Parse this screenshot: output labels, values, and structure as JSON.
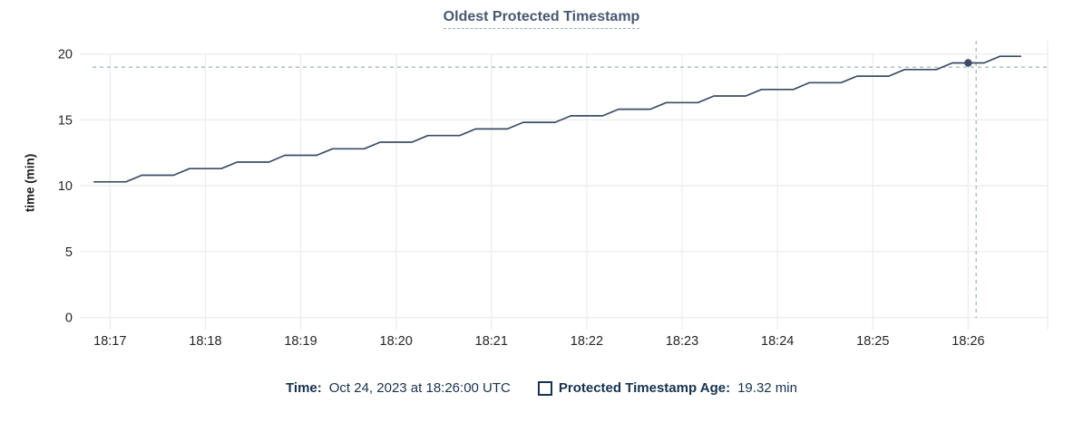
{
  "title": {
    "text": "Oldest Protected Timestamp"
  },
  "legend": {
    "time_label": "Time:",
    "time_value": "Oct 24, 2023 at 18:26:00 UTC",
    "series_label": "Protected Timestamp Age:",
    "series_value": "19.32 min",
    "checkbox_icon": "checkbox-unchecked-icon"
  },
  "colors": {
    "accent": "#475872",
    "underline": "#9aaabb",
    "navy": "#16324f",
    "series": "#3b4c64",
    "grid": "#ededed",
    "cursor": "#a7b6c4",
    "tick_text": "#262626"
  },
  "chart_data": {
    "type": "line",
    "title": "Oldest Protected Timestamp",
    "xlabel": "",
    "ylabel": "time (min)",
    "grid": true,
    "legend_position": "bottom",
    "ylim": [
      0,
      20
    ],
    "y_ticks": [
      0,
      5,
      10,
      15,
      20
    ],
    "x_unit": "seconds relative to 18:17:00",
    "x_domain": [
      -19,
      590
    ],
    "x_ticks": [
      {
        "t": 0,
        "label": "18:17"
      },
      {
        "t": 60,
        "label": "18:18"
      },
      {
        "t": 120,
        "label": "18:19"
      },
      {
        "t": 180,
        "label": "18:20"
      },
      {
        "t": 240,
        "label": "18:21"
      },
      {
        "t": 300,
        "label": "18:22"
      },
      {
        "t": 360,
        "label": "18:23"
      },
      {
        "t": 420,
        "label": "18:24"
      },
      {
        "t": 480,
        "label": "18:25"
      },
      {
        "t": 540,
        "label": "18:26"
      }
    ],
    "series": [
      {
        "name": "Protected Timestamp Age",
        "unit": "min",
        "points": [
          [
            -10,
            10.3
          ],
          [
            10,
            10.3
          ],
          [
            20,
            10.8
          ],
          [
            40,
            10.8
          ],
          [
            50,
            11.3
          ],
          [
            70,
            11.3
          ],
          [
            80,
            11.8
          ],
          [
            100,
            11.8
          ],
          [
            110,
            12.31
          ],
          [
            130,
            12.31
          ],
          [
            140,
            12.81
          ],
          [
            160,
            12.81
          ],
          [
            170,
            13.31
          ],
          [
            190,
            13.31
          ],
          [
            200,
            13.81
          ],
          [
            220,
            13.81
          ],
          [
            230,
            14.31
          ],
          [
            250,
            14.31
          ],
          [
            260,
            14.81
          ],
          [
            280,
            14.81
          ],
          [
            290,
            15.31
          ],
          [
            310,
            15.31
          ],
          [
            320,
            15.81
          ],
          [
            340,
            15.81
          ],
          [
            350,
            16.31
          ],
          [
            370,
            16.31
          ],
          [
            380,
            16.81
          ],
          [
            400,
            16.81
          ],
          [
            410,
            17.31
          ],
          [
            430,
            17.31
          ],
          [
            440,
            17.82
          ],
          [
            460,
            17.82
          ],
          [
            470,
            18.32
          ],
          [
            490,
            18.32
          ],
          [
            500,
            18.82
          ],
          [
            520,
            18.82
          ],
          [
            530,
            19.32
          ],
          [
            550,
            19.32
          ],
          [
            560,
            19.82
          ],
          [
            573,
            19.82
          ]
        ]
      }
    ],
    "cursor": {
      "mouse_t": 545,
      "mouse_value": 19.0,
      "snap_point": {
        "t": 540,
        "label": "18:26:00",
        "value": 19.32
      }
    }
  }
}
